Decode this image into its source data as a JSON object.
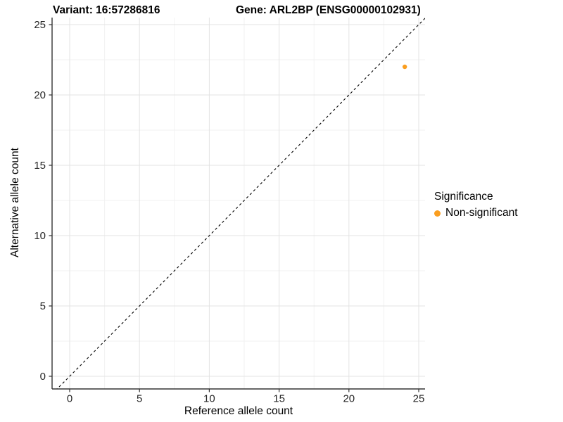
{
  "chart_data": {
    "type": "scatter",
    "title_left": "Variant: 16:57286816",
    "title_right": "Gene: ARL2BP (ENSG00000102931)",
    "xlabel": "Reference allele count",
    "ylabel": "Alternative allele count",
    "xticks": [
      0,
      5,
      10,
      15,
      20,
      25
    ],
    "yticks": [
      0,
      5,
      10,
      15,
      20,
      25
    ],
    "minor_xticks": [
      2.5,
      7.5,
      12.5,
      17.5,
      22.5
    ],
    "minor_yticks": [
      2.5,
      7.5,
      12.5,
      17.5,
      22.5
    ],
    "xlim": [
      -1.3,
      25.5
    ],
    "ylim": [
      -0.9,
      25.5
    ],
    "grid": true,
    "points": [
      {
        "x": 24,
        "y": 22,
        "series": "Non-significant"
      }
    ],
    "reference_line": {
      "style": "dashed",
      "equation": "y = x",
      "color": "#000000"
    },
    "legend": {
      "position": "right",
      "title": "Significance",
      "entries": [
        {
          "label": "Non-significant",
          "color": "#FA9E1F"
        }
      ]
    },
    "colors": {
      "point": "#FA9E1F",
      "grid_major": "#E3E3E3",
      "grid_minor": "#F1F1F1",
      "axis": "#333333",
      "tick_label": "#262626",
      "title": "#000000"
    }
  }
}
